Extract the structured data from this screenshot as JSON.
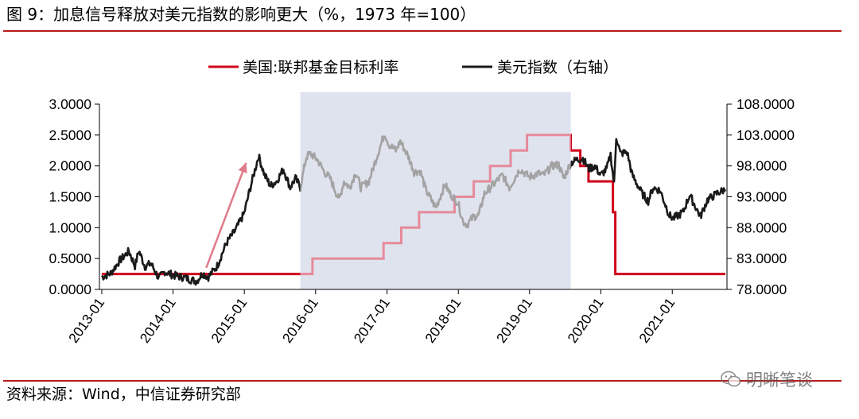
{
  "title": "图 9：加息信号释放对美元指数的影响更大（%，1973 年=100）",
  "source": "资料来源：Wind，中信证券研究部",
  "watermark": "明晰笔谈",
  "watermark_icon": "wechat-icon",
  "colors": {
    "accent": "#c00000",
    "rate_line": "#d0021b",
    "rate_line_faded": "#e58a9a",
    "dxy_line": "#1a1a1a",
    "dxy_line_faded": "#a3a3a3",
    "shade": "#dfe3ee",
    "arrow": "#e07a8a"
  },
  "chart_data": {
    "type": "line",
    "x_axis": {
      "ticks": [
        "2013-01",
        "2014-01",
        "2015-01",
        "2016-01",
        "2017-01",
        "2018-01",
        "2019-01",
        "2020-01",
        "2021-01"
      ],
      "range": [
        "2013-01-01",
        "2021-09-30"
      ],
      "label_rotation": -55
    },
    "y_left": {
      "ticks": [
        "3.0000",
        "2.5000",
        "2.0000",
        "1.5000",
        "1.0000",
        "0.5000",
        "0.0000"
      ],
      "range": [
        0,
        3
      ]
    },
    "y_right": {
      "ticks": [
        "108.0000",
        "103.0000",
        "98.0000",
        "93.0000",
        "88.0000",
        "83.0000",
        "78.0000"
      ],
      "range": [
        78,
        108
      ]
    },
    "grid": false,
    "legend_position": "top-center",
    "shaded_period": [
      "2015-10-15",
      "2019-07-31"
    ],
    "series": [
      {
        "name": "美国:联邦基金目标利率",
        "axis": "left",
        "style": "step",
        "points": [
          [
            "2013-01-01",
            0.25
          ],
          [
            "2015-12-16",
            0.5
          ],
          [
            "2016-12-14",
            0.75
          ],
          [
            "2017-03-15",
            1.0
          ],
          [
            "2017-06-14",
            1.25
          ],
          [
            "2017-12-13",
            1.5
          ],
          [
            "2018-03-21",
            1.75
          ],
          [
            "2018-06-13",
            2.0
          ],
          [
            "2018-09-26",
            2.25
          ],
          [
            "2018-12-19",
            2.5
          ],
          [
            "2019-07-31",
            2.25
          ],
          [
            "2019-09-18",
            2.0
          ],
          [
            "2019-10-30",
            1.75
          ],
          [
            "2020-03-03",
            1.25
          ],
          [
            "2020-03-15",
            0.25
          ],
          [
            "2021-09-30",
            0.25
          ]
        ]
      },
      {
        "name": "美元指数（右轴）",
        "axis": "right",
        "points": [
          [
            "2013-01-01",
            80.0
          ],
          [
            "2013-02-15",
            80.6
          ],
          [
            "2013-04-01",
            82.6
          ],
          [
            "2013-05-20",
            84.2
          ],
          [
            "2013-06-20",
            81.8
          ],
          [
            "2013-07-10",
            84.3
          ],
          [
            "2013-08-10",
            81.7
          ],
          [
            "2013-09-10",
            82.2
          ],
          [
            "2013-10-20",
            79.8
          ],
          [
            "2013-11-20",
            80.9
          ],
          [
            "2014-01-01",
            80.3
          ],
          [
            "2014-03-01",
            79.9
          ],
          [
            "2014-05-01",
            79.3
          ],
          [
            "2014-06-01",
            80.6
          ],
          [
            "2014-07-01",
            80.0
          ],
          [
            "2014-08-15",
            81.8
          ],
          [
            "2014-10-01",
            85.5
          ],
          [
            "2014-11-15",
            87.5
          ],
          [
            "2014-12-31",
            90.3
          ],
          [
            "2015-02-01",
            94.5
          ],
          [
            "2015-03-15",
            99.6
          ],
          [
            "2015-04-15",
            96.5
          ],
          [
            "2015-05-15",
            94.8
          ],
          [
            "2015-06-15",
            95.5
          ],
          [
            "2015-07-20",
            97.5
          ],
          [
            "2015-08-24",
            94.5
          ],
          [
            "2015-09-20",
            96.0
          ],
          [
            "2015-10-15",
            94.5
          ],
          [
            "2015-11-15",
            99.5
          ],
          [
            "2015-12-05",
            100.0
          ],
          [
            "2016-01-10",
            99.0
          ],
          [
            "2016-02-15",
            97.0
          ],
          [
            "2016-03-15",
            96.0
          ],
          [
            "2016-05-01",
            92.5
          ],
          [
            "2016-05-25",
            95.5
          ],
          [
            "2016-06-24",
            94.5
          ],
          [
            "2016-07-25",
            97.0
          ],
          [
            "2016-08-20",
            94.5
          ],
          [
            "2016-09-30",
            95.5
          ],
          [
            "2016-11-15",
            100.0
          ],
          [
            "2016-12-20",
            103.3
          ],
          [
            "2017-01-10",
            101.5
          ],
          [
            "2017-02-15",
            100.5
          ],
          [
            "2017-03-10",
            102.0
          ],
          [
            "2017-04-20",
            99.5
          ],
          [
            "2017-05-20",
            97.0
          ],
          [
            "2017-06-20",
            97.2
          ],
          [
            "2017-07-20",
            94.0
          ],
          [
            "2017-09-08",
            91.2
          ],
          [
            "2017-10-25",
            95.0
          ],
          [
            "2017-11-20",
            93.5
          ],
          [
            "2017-12-31",
            92.0
          ],
          [
            "2018-01-25",
            89.0
          ],
          [
            "2018-02-15",
            88.5
          ],
          [
            "2018-03-20",
            89.8
          ],
          [
            "2018-04-15",
            90.0
          ],
          [
            "2018-05-15",
            93.5
          ],
          [
            "2018-06-30",
            95.0
          ],
          [
            "2018-08-15",
            96.5
          ],
          [
            "2018-09-20",
            94.5
          ],
          [
            "2018-11-12",
            97.5
          ],
          [
            "2018-12-31",
            96.2
          ],
          [
            "2019-02-15",
            96.8
          ],
          [
            "2019-03-15",
            96.5
          ],
          [
            "2019-04-25",
            98.0
          ],
          [
            "2019-05-30",
            98.2
          ],
          [
            "2019-06-25",
            96.0
          ],
          [
            "2019-07-31",
            98.5
          ],
          [
            "2019-09-01",
            99.0
          ],
          [
            "2019-10-01",
            99.2
          ],
          [
            "2019-11-01",
            97.5
          ],
          [
            "2019-12-01",
            98.0
          ],
          [
            "2019-12-31",
            96.5
          ],
          [
            "2020-01-31",
            97.5
          ],
          [
            "2020-02-20",
            99.8
          ],
          [
            "2020-03-09",
            95.0
          ],
          [
            "2020-03-20",
            102.8
          ],
          [
            "2020-04-10",
            100.0
          ],
          [
            "2020-05-15",
            100.2
          ],
          [
            "2020-06-10",
            96.5
          ],
          [
            "2020-07-31",
            93.5
          ],
          [
            "2020-08-31",
            92.3
          ],
          [
            "2020-09-25",
            94.5
          ],
          [
            "2020-10-31",
            94.0
          ],
          [
            "2020-12-17",
            90.0
          ],
          [
            "2021-01-06",
            89.5
          ],
          [
            "2021-02-25",
            90.5
          ],
          [
            "2021-03-31",
            93.3
          ],
          [
            "2021-05-25",
            89.8
          ],
          [
            "2021-06-30",
            92.5
          ],
          [
            "2021-07-15",
            92.8
          ],
          [
            "2021-08-20",
            93.6
          ],
          [
            "2021-09-30",
            94.2
          ]
        ]
      }
    ],
    "annotations": [
      {
        "type": "arrow",
        "from": [
          "2014-06-20",
          81.5
        ],
        "to": [
          "2015-01-10",
          98.5
        ]
      }
    ]
  }
}
